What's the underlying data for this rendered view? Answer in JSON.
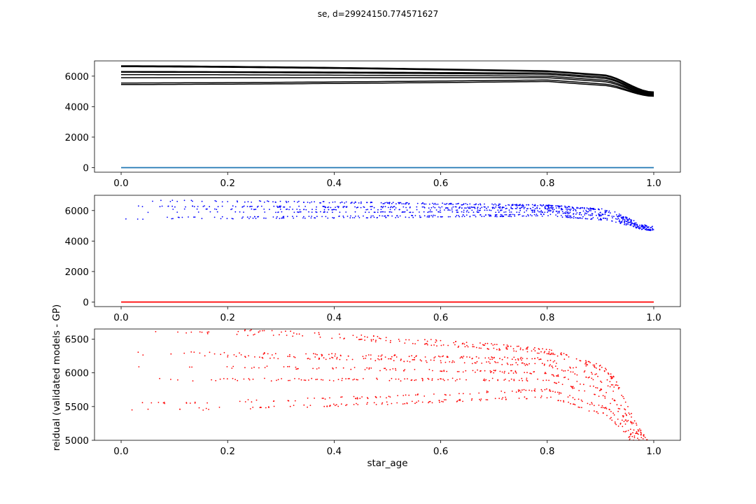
{
  "figure": {
    "title": "se, d=29924150.774571627"
  },
  "chart_data": [
    {
      "type": "line",
      "panel": "top",
      "xlim": [
        -0.05,
        1.05
      ],
      "ylim": [
        -300,
        7000
      ],
      "xticks": [
        "0.0",
        "0.2",
        "0.4",
        "0.6",
        "0.8",
        "1.0"
      ],
      "yticks": [
        "0",
        "2000",
        "4000",
        "6000"
      ],
      "xlabel": "",
      "ylabel": "",
      "series": [
        {
          "color": "#000000",
          "style": "track-lines",
          "tracks": [
            {
              "start": 6680,
              "plateau": 6350,
              "end": 4960
            },
            {
              "start": 6620,
              "plateau": 6300,
              "end": 4900
            },
            {
              "start": 6300,
              "plateau": 6200,
              "end": 4850
            },
            {
              "start": 6260,
              "plateau": 6120,
              "end": 4800
            },
            {
              "start": 6100,
              "plateau": 6000,
              "end": 4760
            },
            {
              "start": 5900,
              "plateau": 5900,
              "end": 4720
            },
            {
              "start": 5550,
              "plateau": 5750,
              "end": 4700
            },
            {
              "start": 5450,
              "plateau": 5650,
              "end": 4680
            }
          ]
        },
        {
          "color": "#1f77b4",
          "style": "line",
          "x": [
            0.0,
            1.0
          ],
          "y": [
            0,
            0
          ]
        }
      ]
    },
    {
      "type": "scatter",
      "panel": "middle",
      "xlim": [
        -0.05,
        1.05
      ],
      "ylim": [
        -300,
        7000
      ],
      "xticks": [
        "0.0",
        "0.2",
        "0.4",
        "0.6",
        "0.8",
        "1.0"
      ],
      "yticks": [
        "0",
        "2000",
        "4000",
        "6000"
      ],
      "xlabel": "",
      "ylabel": "",
      "series": [
        {
          "color": "#0000ff",
          "style": "points",
          "tracks": "same as top panel"
        },
        {
          "color": "#ff0000",
          "style": "line",
          "x": [
            0.0,
            1.0
          ],
          "y": [
            0,
            0
          ]
        }
      ]
    },
    {
      "type": "scatter",
      "panel": "bottom",
      "xlim": [
        -0.05,
        1.05
      ],
      "ylim": [
        5000,
        6650
      ],
      "xticks": [
        "0.0",
        "0.2",
        "0.4",
        "0.6",
        "0.8",
        "1.0"
      ],
      "yticks": [
        "5000",
        "5500",
        "6000",
        "6500"
      ],
      "xlabel": "star_age",
      "ylabel": "reidual (validated models - GP)",
      "series": [
        {
          "color": "#ff0000",
          "style": "points",
          "tracks": "same as top panel"
        }
      ]
    }
  ]
}
